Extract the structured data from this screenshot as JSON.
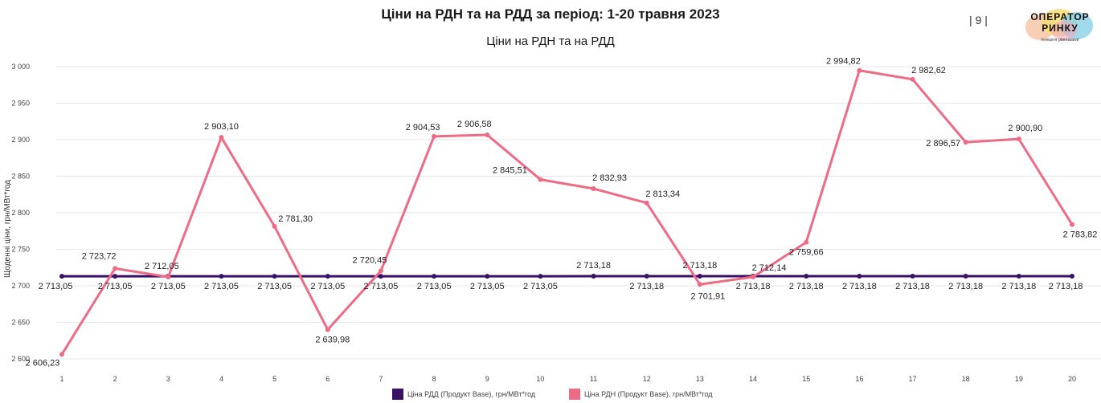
{
  "header": {
    "title": "Ціни на РДН та на РДД за період: 1-20 травня 2023",
    "page_number": "| 9 |",
    "logo_line1": "ОПЕРАТОР",
    "logo_line2": "РИНКУ",
    "logo_tagline": "/енергія рівноваги/"
  },
  "chart_data": {
    "type": "line",
    "title": "Ціни на РДН та на РДД",
    "ylabel": "Щоденні ціни, грн/МВт*год",
    "xlabel": "",
    "ylim": [
      2600,
      3000
    ],
    "yticks": [
      2600,
      2650,
      2700,
      2750,
      2800,
      2850,
      2900,
      2950,
      3000
    ],
    "ytick_labels": [
      "2 600",
      "2 650",
      "2 700",
      "2 750",
      "2 800",
      "2 850",
      "2 900",
      "2 950",
      "3 000"
    ],
    "grid": true,
    "legend_position": "bottom",
    "categories": [
      "1",
      "2",
      "3",
      "4",
      "5",
      "6",
      "7",
      "8",
      "9",
      "10",
      "11",
      "12",
      "13",
      "14",
      "15",
      "16",
      "17",
      "18",
      "19",
      "20"
    ],
    "series": [
      {
        "name": "Ціна РДД (Продукт Base), грн/МВт*год",
        "color": "#3b1166",
        "values": [
          2713.05,
          2713.05,
          2713.05,
          2713.05,
          2713.05,
          2713.05,
          2713.05,
          2713.05,
          2713.05,
          2713.05,
          2713.18,
          2713.18,
          2713.18,
          2713.18,
          2713.18,
          2713.18,
          2713.18,
          2713.18,
          2713.18,
          2713.18
        ],
        "labels": [
          "2 713,05",
          "2 713,05",
          "2 713,05",
          "2 713,05",
          "2 713,05",
          "2 713,05",
          "2 713,05",
          "2 713,05",
          "2 713,05",
          "2 713,05",
          "2 713,18",
          "2 713,18",
          "2 713,18",
          "2 713,18",
          "2 713,18",
          "2 713,18",
          "2 713,18",
          "2 713,18",
          "2 713,18",
          "2 713,18"
        ]
      },
      {
        "name": "Ціна РДН (Продукт Base), грн/МВт*год",
        "color": "#ee6b85",
        "values": [
          2606.23,
          2723.72,
          2712.05,
          2903.1,
          2781.3,
          2639.98,
          2720.45,
          2904.53,
          2906.58,
          2845.51,
          2832.93,
          2813.34,
          2701.91,
          2712.14,
          2759.66,
          2994.82,
          2982.62,
          2896.57,
          2900.9,
          2783.82
        ],
        "labels": [
          "2 606,23",
          "2 723,72",
          "2 712,05",
          "2 903,10",
          "2 781,30",
          "2 639,98",
          "2 720,45",
          "2 904,53",
          "2 906,58",
          "2 845,51",
          "2 832,93",
          "2 813,34",
          "2 701,91",
          "2 712,14",
          "2 759,66",
          "2 994,82",
          "2 982,62",
          "2 896,57",
          "2 900,90",
          "2 783,82"
        ]
      }
    ]
  }
}
